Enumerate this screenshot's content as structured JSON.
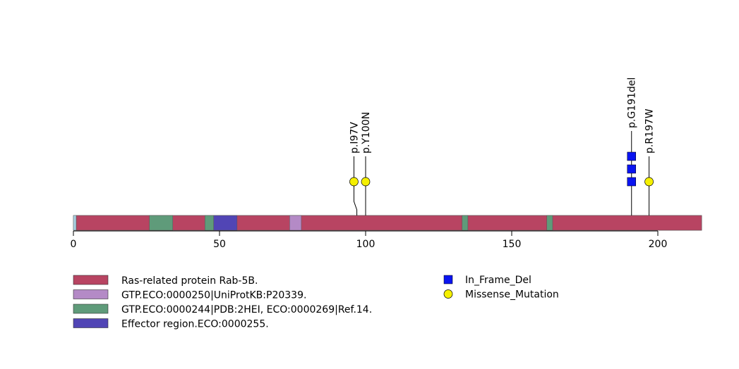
{
  "chart_data": {
    "type": "lollipop",
    "protein_length": 215,
    "x_ticks": [
      0,
      50,
      100,
      150,
      200
    ],
    "x_tick_labels": [
      "0",
      "50",
      "100",
      "150",
      "200"
    ],
    "backbone_color": "#b84462",
    "domains": [
      {
        "name": "Ras-related protein Rab-5B.",
        "start": 1,
        "end": 215,
        "color": "#b84462"
      },
      {
        "name": "GTP.ECO:0000250|UniProtKB:P20339.",
        "start": 74,
        "end": 78,
        "color": "#b48ac6"
      },
      {
        "name": "GTP.ECO:0000244|PDB:2HEI, ECO:0000269|Ref.14.",
        "start": 26,
        "end": 34,
        "color": "#5f9b7a"
      },
      {
        "name": "GTP.ECO:0000244|PDB:2HEI, ECO:0000269|Ref.14.",
        "start": 45,
        "end": 48,
        "color": "#5f9b7a"
      },
      {
        "name": "GTP.ECO:0000244|PDB:2HEI, ECO:0000269|Ref.14.",
        "start": 133,
        "end": 135,
        "color": "#5f9b7a"
      },
      {
        "name": "GTP.ECO:0000244|PDB:2HEI, ECO:0000269|Ref.14.",
        "start": 162,
        "end": 164,
        "color": "#5f9b7a"
      },
      {
        "name": "Effector region.ECO:0000255.",
        "start": 48,
        "end": 56,
        "color": "#5145b5"
      }
    ],
    "mutations": [
      {
        "label": "p.I97V",
        "position": 97,
        "count": 1,
        "type": "Missense_Mutation",
        "draw_x": 96
      },
      {
        "label": "p.Y100N",
        "position": 100,
        "count": 1,
        "type": "Missense_Mutation",
        "draw_x": 100
      },
      {
        "label": "p.G191del",
        "position": 191,
        "count": 3,
        "type": "In_Frame_Del",
        "draw_x": 191
      },
      {
        "label": "p.R197W",
        "position": 197,
        "count": 1,
        "type": "Missense_Mutation",
        "draw_x": 197
      }
    ],
    "legend_domains": [
      {
        "label": "Ras-related protein Rab-5B.",
        "color": "#b84462"
      },
      {
        "label": "GTP.ECO:0000250|UniProtKB:P20339.",
        "color": "#b48ac6"
      },
      {
        "label": "GTP.ECO:0000244|PDB:2HEI, ECO:0000269|Ref.14.",
        "color": "#5f9b7a"
      },
      {
        "label": "Effector region.ECO:0000255.",
        "color": "#5145b5"
      }
    ],
    "legend_mutations": [
      {
        "label": "In_Frame_Del",
        "shape": "square",
        "color": "#0a14f0"
      },
      {
        "label": "Missense_Mutation",
        "shape": "circle",
        "color": "#f5f000"
      }
    ]
  }
}
